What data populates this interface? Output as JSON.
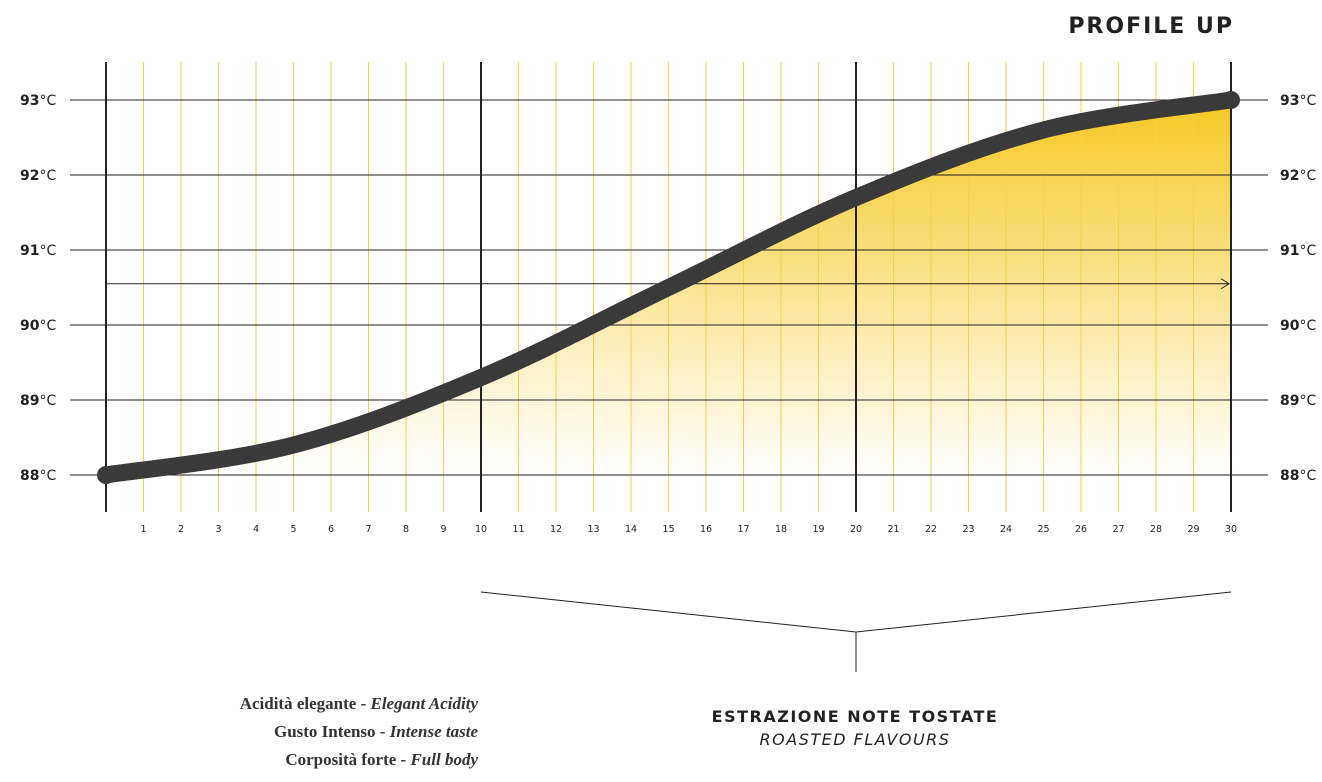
{
  "title": "PROFILE UP",
  "chart_data": {
    "type": "line",
    "x": [
      0,
      5,
      10,
      15,
      20,
      25,
      30
    ],
    "series": [
      {
        "values": [
          88.0,
          88.4,
          89.3,
          90.5,
          91.7,
          92.6,
          93.0
        ]
      }
    ],
    "xlim": [
      0,
      30
    ],
    "ylim": [
      88,
      93
    ],
    "x_ticks": [
      "1",
      "2",
      "3",
      "4",
      "5",
      "6",
      "7",
      "8",
      "9",
      "10",
      "11",
      "12",
      "13",
      "14",
      "15",
      "16",
      "17",
      "18",
      "19",
      "20",
      "21",
      "22",
      "23",
      "24",
      "25",
      "26",
      "27",
      "28",
      "29",
      "30"
    ],
    "y_ticks": [
      {
        "num": "93",
        "unit": "°C"
      },
      {
        "num": "92",
        "unit": "°C"
      },
      {
        "num": "91",
        "unit": "°C"
      },
      {
        "num": "90",
        "unit": "°C"
      },
      {
        "num": "89",
        "unit": "°C"
      },
      {
        "num": "88",
        "unit": "°C"
      }
    ],
    "colors": {
      "curve": "#3a3a3a",
      "fill": "#f5c518",
      "minor_grid": "#f3d24a",
      "major_grid": "#222222"
    }
  },
  "notes": [
    {
      "it": "Acidità elegante - ",
      "en": "Elegant Acidity"
    },
    {
      "it": "Gusto Intenso - ",
      "en": "Intense taste"
    },
    {
      "it": "Corposità forte - ",
      "en": "Full body"
    }
  ],
  "extraction": {
    "title": "ESTRAZIONE NOTE TOSTATE",
    "subtitle": "ROASTED FLAVOURS"
  }
}
